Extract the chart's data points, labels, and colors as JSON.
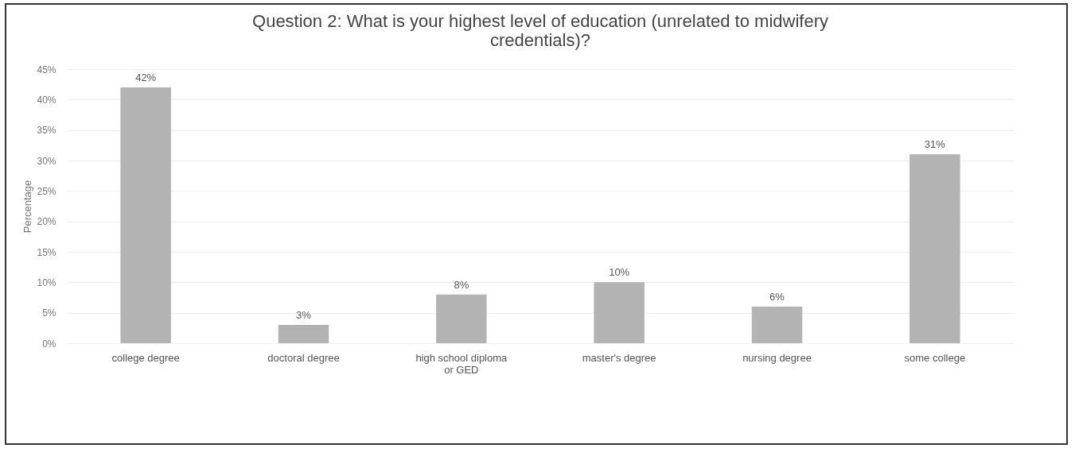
{
  "chart_data": {
    "type": "bar",
    "title": "Question 2: What is your highest level of education (unrelated to midwifery credentials)?",
    "ylabel": "Percentage",
    "categories": [
      "college degree",
      "doctoral degree",
      "high school diploma or GED",
      "master's degree",
      "nursing degree",
      "some college"
    ],
    "values": [
      42,
      3,
      8,
      10,
      6,
      31
    ],
    "value_labels": [
      "42%",
      "3%",
      "8%",
      "10%",
      "6%",
      "31%"
    ],
    "color": "#b3b3b3",
    "ylim": [
      0,
      45
    ],
    "yticks": [
      {
        "value": 0,
        "label": "0%"
      },
      {
        "value": 5,
        "label": "5%"
      },
      {
        "value": 10,
        "label": "10%"
      },
      {
        "value": 15,
        "label": "15%"
      },
      {
        "value": 20,
        "label": "20%"
      },
      {
        "value": 25,
        "label": "25%"
      },
      {
        "value": 30,
        "label": "30%"
      },
      {
        "value": 35,
        "label": "35%"
      },
      {
        "value": 40,
        "label": "40%"
      },
      {
        "value": 45,
        "label": "45%"
      }
    ],
    "grid": "y"
  }
}
